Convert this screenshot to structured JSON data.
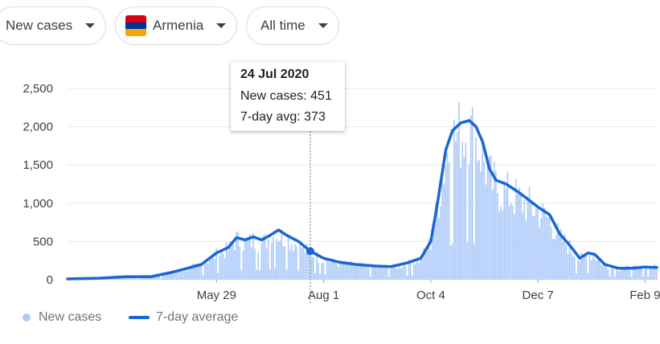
{
  "filters": {
    "metric": "New cases",
    "country": "Armenia",
    "range": "All time"
  },
  "flag_colors": [
    "#d90012",
    "#0033a0",
    "#f2a800"
  ],
  "tooltip": {
    "date": "24 Jul 2020",
    "new_cases_label": "New cases: 451",
    "avg_label": "7-day avg: 373"
  },
  "legend": {
    "bars_label": "New cases",
    "line_label": "7-day average"
  },
  "colors": {
    "bar": "#aecbfa",
    "line": "#1967d2",
    "grid": "#e8eaed",
    "text": "#3c4043"
  },
  "chart_data": {
    "type": "bar",
    "title": "",
    "xlabel": "",
    "ylabel": "",
    "ylim": [
      0,
      2600
    ],
    "y_ticks": [
      0,
      500,
      1000,
      1500,
      2000,
      2500
    ],
    "y_tick_labels": [
      "0",
      "500",
      "1,000",
      "1,500",
      "2,000",
      "2,500"
    ],
    "x_start": "2020-03-01",
    "x_end": "2021-02-16",
    "x_tick_labels": [
      {
        "label": "May 29",
        "date": "2020-05-29"
      },
      {
        "label": "Aug 1",
        "date": "2020-08-01"
      },
      {
        "label": "Oct 4",
        "date": "2020-10-04"
      },
      {
        "label": "Dec 7",
        "date": "2020-12-07"
      },
      {
        "label": "Feb 9",
        "date": "2021-02-09"
      }
    ],
    "series": [
      {
        "name": "7-day average",
        "type": "line",
        "points": [
          [
            "2020-03-01",
            10
          ],
          [
            "2020-03-20",
            20
          ],
          [
            "2020-04-05",
            40
          ],
          [
            "2020-04-20",
            40
          ],
          [
            "2020-05-01",
            90
          ],
          [
            "2020-05-10",
            140
          ],
          [
            "2020-05-20",
            200
          ],
          [
            "2020-05-29",
            350
          ],
          [
            "2020-06-05",
            420
          ],
          [
            "2020-06-10",
            550
          ],
          [
            "2020-06-15",
            520
          ],
          [
            "2020-06-20",
            560
          ],
          [
            "2020-06-25",
            520
          ],
          [
            "2020-06-30",
            580
          ],
          [
            "2020-07-05",
            650
          ],
          [
            "2020-07-10",
            580
          ],
          [
            "2020-07-17",
            500
          ],
          [
            "2020-07-24",
            373
          ],
          [
            "2020-08-01",
            280
          ],
          [
            "2020-08-10",
            230
          ],
          [
            "2020-08-20",
            200
          ],
          [
            "2020-08-31",
            180
          ],
          [
            "2020-09-10",
            170
          ],
          [
            "2020-09-20",
            220
          ],
          [
            "2020-09-28",
            280
          ],
          [
            "2020-10-04",
            500
          ],
          [
            "2020-10-08",
            1000
          ],
          [
            "2020-10-13",
            1700
          ],
          [
            "2020-10-17",
            1950
          ],
          [
            "2020-10-22",
            2050
          ],
          [
            "2020-10-27",
            2080
          ],
          [
            "2020-10-31",
            2000
          ],
          [
            "2020-11-04",
            1800
          ],
          [
            "2020-11-08",
            1450
          ],
          [
            "2020-11-12",
            1300
          ],
          [
            "2020-11-18",
            1250
          ],
          [
            "2020-11-25",
            1150
          ],
          [
            "2020-12-01",
            1050
          ],
          [
            "2020-12-07",
            950
          ],
          [
            "2020-12-14",
            850
          ],
          [
            "2020-12-20",
            600
          ],
          [
            "2020-12-26",
            450
          ],
          [
            "2021-01-01",
            280
          ],
          [
            "2021-01-06",
            350
          ],
          [
            "2021-01-10",
            330
          ],
          [
            "2021-01-16",
            200
          ],
          [
            "2021-01-24",
            150
          ],
          [
            "2021-02-01",
            150
          ],
          [
            "2021-02-09",
            165
          ],
          [
            "2021-02-16",
            160
          ]
        ]
      }
    ],
    "bars": {
      "name": "New cases",
      "date_start": "2020-03-01",
      "date_end": "2021-02-16",
      "envelope": [
        [
          "2020-03-01",
          15
        ],
        [
          "2020-03-20",
          25
        ],
        [
          "2020-04-05",
          50
        ],
        [
          "2020-04-20",
          50
        ],
        [
          "2020-05-01",
          110
        ],
        [
          "2020-05-10",
          170
        ],
        [
          "2020-05-20",
          250
        ],
        [
          "2020-05-29",
          420
        ],
        [
          "2020-06-05",
          500
        ],
        [
          "2020-06-10",
          680
        ],
        [
          "2020-06-15",
          600
        ],
        [
          "2020-06-20",
          660
        ],
        [
          "2020-06-25",
          600
        ],
        [
          "2020-06-30",
          700
        ],
        [
          "2020-07-05",
          760
        ],
        [
          "2020-07-10",
          680
        ],
        [
          "2020-07-17",
          580
        ],
        [
          "2020-07-24",
          451
        ],
        [
          "2020-08-01",
          330
        ],
        [
          "2020-08-10",
          270
        ],
        [
          "2020-08-20",
          240
        ],
        [
          "2020-08-31",
          210
        ],
        [
          "2020-09-10",
          200
        ],
        [
          "2020-09-20",
          260
        ],
        [
          "2020-09-28",
          340
        ],
        [
          "2020-10-04",
          620
        ],
        [
          "2020-10-08",
          1200
        ],
        [
          "2020-10-13",
          2050
        ],
        [
          "2020-10-17",
          2350
        ],
        [
          "2020-10-22",
          2450
        ],
        [
          "2020-10-27",
          2480
        ],
        [
          "2020-10-31",
          2350
        ],
        [
          "2020-11-04",
          2100
        ],
        [
          "2020-11-08",
          1700
        ],
        [
          "2020-11-12",
          1550
        ],
        [
          "2020-11-18",
          1450
        ],
        [
          "2020-11-25",
          1350
        ],
        [
          "2020-12-01",
          1250
        ],
        [
          "2020-12-07",
          1150
        ],
        [
          "2020-12-14",
          1000
        ],
        [
          "2020-12-20",
          720
        ],
        [
          "2020-12-26",
          540
        ],
        [
          "2021-01-01",
          340
        ],
        [
          "2021-01-06",
          420
        ],
        [
          "2021-01-10",
          400
        ],
        [
          "2021-01-16",
          240
        ],
        [
          "2021-01-24",
          190
        ],
        [
          "2021-02-01",
          190
        ],
        [
          "2021-02-09",
          200
        ],
        [
          "2021-02-16",
          210
        ]
      ]
    },
    "highlight": {
      "date": "2020-07-24",
      "new_cases": 451,
      "avg": 373
    },
    "legend_position": "bottom-left",
    "grid": true
  }
}
